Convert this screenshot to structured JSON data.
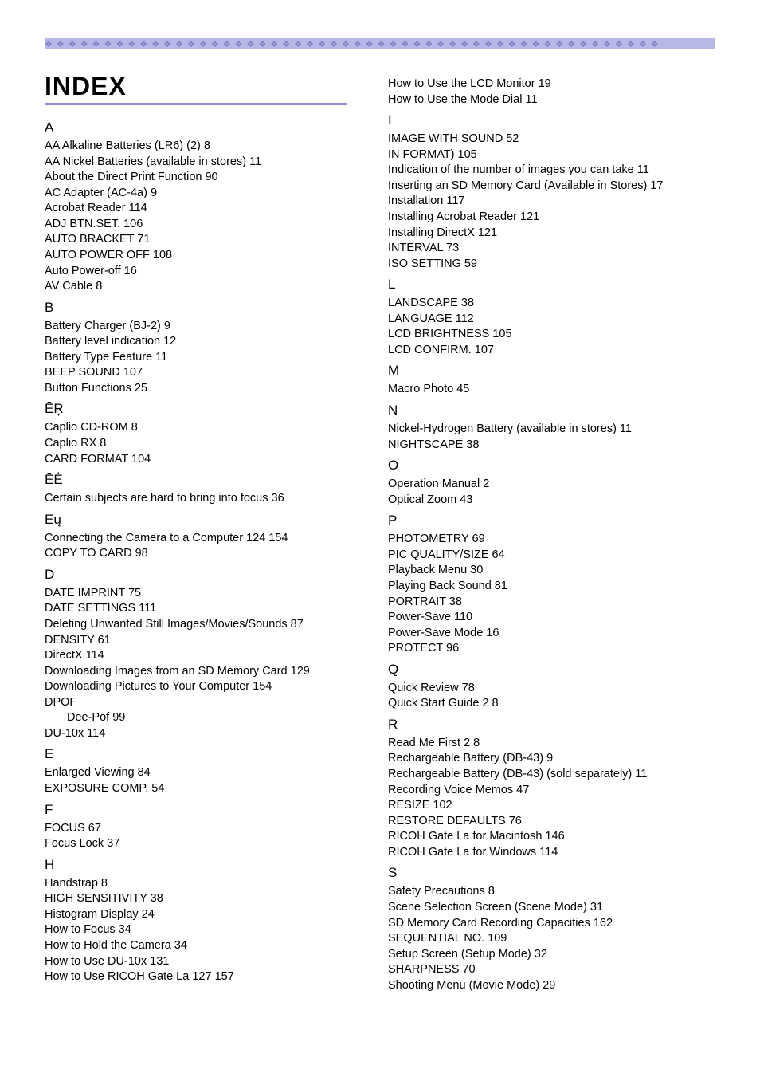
{
  "title": "INDEX",
  "left_column": [
    {
      "type": "header",
      "text": "A"
    },
    {
      "type": "entry",
      "text": "AA Alkaline Batteries (LR6) (2)  8"
    },
    {
      "type": "entry",
      "text": "AA Nickel Batteries (available in stores)  11"
    },
    {
      "type": "entry",
      "text": "About the Direct Print Function  90"
    },
    {
      "type": "entry",
      "text": "AC Adapter (AC-4a)  9"
    },
    {
      "type": "entry",
      "text": "Acrobat Reader  114"
    },
    {
      "type": "entry",
      "text": "ADJ BTN.SET.  106"
    },
    {
      "type": "entry",
      "text": "AUTO BRACKET  71"
    },
    {
      "type": "entry",
      "text": "AUTO POWER OFF  108"
    },
    {
      "type": "entry",
      "text": "Auto Power-off  16"
    },
    {
      "type": "entry",
      "text": "AV Cable  8"
    },
    {
      "type": "header",
      "text": "B"
    },
    {
      "type": "entry",
      "text": "Battery Charger (BJ-2)  9"
    },
    {
      "type": "entry",
      "text": "Battery level indication  12"
    },
    {
      "type": "entry",
      "text": "Battery Type Feature  11"
    },
    {
      "type": "entry",
      "text": "BEEP SOUND  107"
    },
    {
      "type": "entry",
      "text": "Button Functions  25"
    },
    {
      "type": "header",
      "text": "ĒŖ"
    },
    {
      "type": "entry",
      "text": "Caplio CD-ROM  8"
    },
    {
      "type": "entry",
      "text": "Caplio RX  8"
    },
    {
      "type": "entry",
      "text": "CARD FORMAT  104"
    },
    {
      "type": "header",
      "text": "ĒĖ"
    },
    {
      "type": "entry",
      "text": "Certain subjects are hard to bring into focus  36"
    },
    {
      "type": "header",
      "text": "Ēų"
    },
    {
      "type": "entry",
      "text": "Connecting the Camera to a Computer  124    154"
    },
    {
      "type": "entry",
      "text": "COPY TO CARD  98"
    },
    {
      "type": "header",
      "text": "D"
    },
    {
      "type": "entry",
      "text": "DATE IMPRINT  75"
    },
    {
      "type": "entry",
      "text": "DATE SETTINGS  111"
    },
    {
      "type": "entry",
      "text": "Deleting Unwanted Still Images/Movies/Sounds  87"
    },
    {
      "type": "entry",
      "text": "DENSITY  61"
    },
    {
      "type": "entry",
      "text": "DirectX  114"
    },
    {
      "type": "entry",
      "text": "Downloading Images from an SD Memory Card  129"
    },
    {
      "type": "entry",
      "text": "Downloading Pictures to Your Computer  154"
    },
    {
      "type": "entry",
      "text": "DPOF"
    },
    {
      "type": "entry",
      "text": "Dee-Pof  99",
      "indent": true
    },
    {
      "type": "entry",
      "text": "DU-10x  114"
    },
    {
      "type": "header",
      "text": "E"
    },
    {
      "type": "entry",
      "text": "Enlarged Viewing  84"
    },
    {
      "type": "entry",
      "text": "EXPOSURE COMP.  54"
    },
    {
      "type": "header",
      "text": "F"
    },
    {
      "type": "entry",
      "text": "FOCUS  67"
    },
    {
      "type": "entry",
      "text": "Focus Lock  37"
    },
    {
      "type": "header",
      "text": "H"
    },
    {
      "type": "entry",
      "text": "Handstrap  8"
    },
    {
      "type": "entry",
      "text": "HIGH SENSITIVITY  38"
    },
    {
      "type": "entry",
      "text": "Histogram Display  24"
    },
    {
      "type": "entry",
      "text": "How to Focus  34"
    },
    {
      "type": "entry",
      "text": "How to Hold the Camera  34"
    },
    {
      "type": "entry",
      "text": "How to Use DU-10x  131"
    },
    {
      "type": "entry",
      "text": "How to Use RICOH Gate La  127    157"
    }
  ],
  "right_column": [
    {
      "type": "entry",
      "text": "How to Use the LCD Monitor  19"
    },
    {
      "type": "entry",
      "text": "How to Use the Mode Dial  11"
    },
    {
      "type": "header",
      "text": "I"
    },
    {
      "type": "entry",
      "text": "IMAGE WITH SOUND  52"
    },
    {
      "type": "entry",
      "text": "IN FORMAT)  105"
    },
    {
      "type": "entry",
      "text": "Indication of the number of images you can take  11"
    },
    {
      "type": "entry",
      "text": "Inserting an SD Memory Card (Available in Stores)  17"
    },
    {
      "type": "entry",
      "text": "Installation  117"
    },
    {
      "type": "entry",
      "text": "Installing Acrobat Reader  121"
    },
    {
      "type": "entry",
      "text": "Installing DirectX  121"
    },
    {
      "type": "entry",
      "text": "INTERVAL  73"
    },
    {
      "type": "entry",
      "text": "ISO SETTING  59"
    },
    {
      "type": "header",
      "text": "L"
    },
    {
      "type": "entry",
      "text": "LANDSCAPE  38"
    },
    {
      "type": "entry",
      "text": "LANGUAGE  112"
    },
    {
      "type": "entry",
      "text": "LCD BRIGHTNESS  105"
    },
    {
      "type": "entry",
      "text": "LCD CONFIRM.  107"
    },
    {
      "type": "header",
      "text": "M"
    },
    {
      "type": "entry",
      "text": "Macro Photo  45"
    },
    {
      "type": "header",
      "text": "N"
    },
    {
      "type": "entry",
      "text": "Nickel-Hydrogen Battery (available in stores)  11"
    },
    {
      "type": "entry",
      "text": "NIGHTSCAPE  38"
    },
    {
      "type": "header",
      "text": "O"
    },
    {
      "type": "entry",
      "text": "Operation Manual  2"
    },
    {
      "type": "entry",
      "text": "Optical Zoom  43"
    },
    {
      "type": "header",
      "text": "P"
    },
    {
      "type": "entry",
      "text": "PHOTOMETRY  69"
    },
    {
      "type": "entry",
      "text": "PIC QUALITY/SIZE  64"
    },
    {
      "type": "entry",
      "text": "Playback Menu  30"
    },
    {
      "type": "entry",
      "text": "Playing Back Sound  81"
    },
    {
      "type": "entry",
      "text": "PORTRAIT  38"
    },
    {
      "type": "entry",
      "text": "Power-Save  110"
    },
    {
      "type": "entry",
      "text": "Power-Save Mode  16"
    },
    {
      "type": "entry",
      "text": "PROTECT  96"
    },
    {
      "type": "header",
      "text": "Q"
    },
    {
      "type": "entry",
      "text": "Quick Review  78"
    },
    {
      "type": "entry",
      "text": "Quick Start Guide  2    8"
    },
    {
      "type": "header",
      "text": "R"
    },
    {
      "type": "entry",
      "text": "Read Me First  2    8"
    },
    {
      "type": "entry",
      "text": "Rechargeable Battery (DB-43)  9"
    },
    {
      "type": "entry",
      "text": "Rechargeable Battery (DB-43) (sold separately)  11"
    },
    {
      "type": "entry",
      "text": "Recording Voice Memos  47"
    },
    {
      "type": "entry",
      "text": "RESIZE  102"
    },
    {
      "type": "entry",
      "text": "RESTORE DEFAULTS  76"
    },
    {
      "type": "entry",
      "text": "RICOH Gate La for Macintosh  146"
    },
    {
      "type": "entry",
      "text": "RICOH Gate La for Windows  114"
    },
    {
      "type": "header",
      "text": "S"
    },
    {
      "type": "entry",
      "text": "Safety Precautions  8"
    },
    {
      "type": "entry",
      "text": "Scene Selection Screen (Scene Mode)  31"
    },
    {
      "type": "entry",
      "text": "SD Memory Card Recording Capacities  162"
    },
    {
      "type": "entry",
      "text": "SEQUENTIAL NO.  109"
    },
    {
      "type": "entry",
      "text": "Setup Screen (Setup Mode)  32"
    },
    {
      "type": "entry",
      "text": "SHARPNESS  70"
    },
    {
      "type": "entry",
      "text": "Shooting Menu (Movie Mode)  29"
    }
  ]
}
